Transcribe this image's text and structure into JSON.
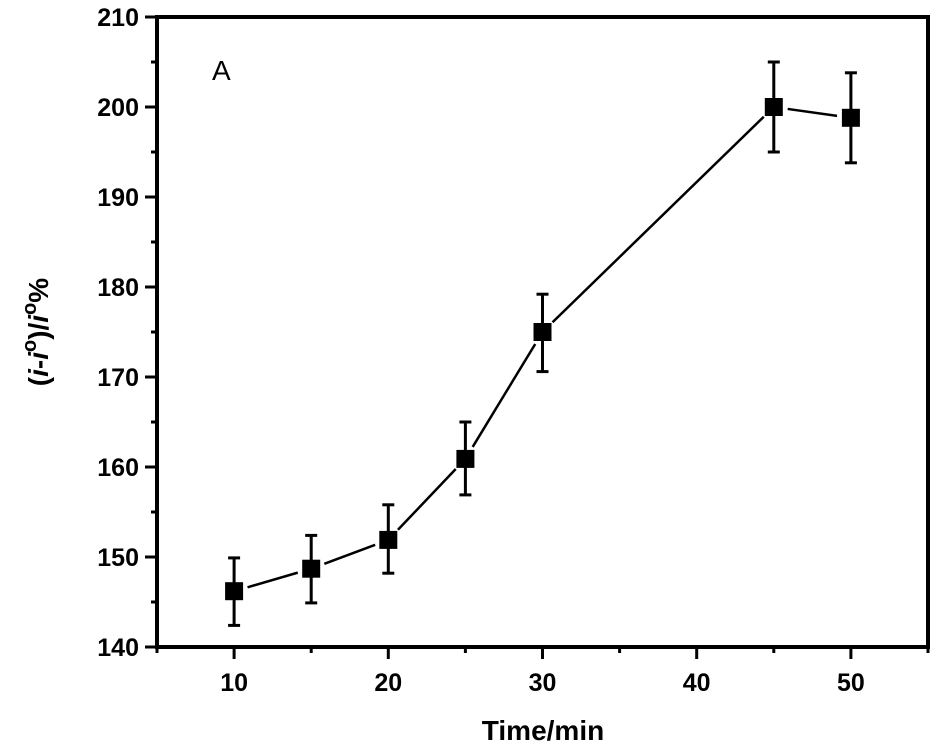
{
  "chart_data": {
    "type": "line",
    "title": "",
    "annotation": "A",
    "xlabel": "Time/min",
    "ylabel": "(i-i°)/i°%",
    "xlim": [
      5,
      55
    ],
    "ylim": [
      140,
      210
    ],
    "xticks": [
      10,
      20,
      30,
      40,
      50
    ],
    "yticks": [
      140,
      150,
      160,
      170,
      180,
      190,
      200,
      210
    ],
    "grid": false,
    "legend": "none",
    "series": [
      {
        "name": "signal",
        "marker": "square",
        "color": "#000000",
        "x": [
          10,
          15,
          20,
          25,
          30,
          45,
          50
        ],
        "y": [
          146.2,
          148.7,
          151.9,
          160.9,
          175.0,
          200.0,
          198.8
        ],
        "err_low": [
          142.4,
          144.9,
          148.2,
          156.9,
          170.6,
          195.0,
          193.8
        ],
        "err_high": [
          149.9,
          152.4,
          155.8,
          165.0,
          179.2,
          205.0,
          203.8
        ]
      }
    ]
  }
}
